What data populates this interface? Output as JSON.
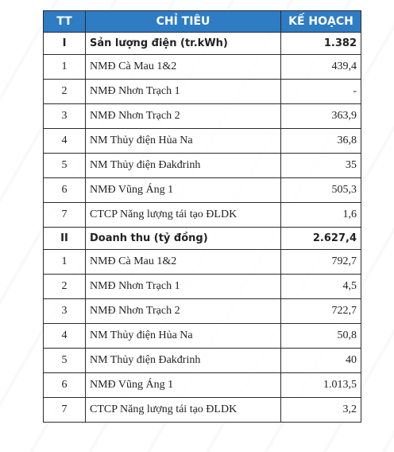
{
  "table": {
    "header": [
      "TT",
      "CHỈ TIÊU",
      "KẾ HOẠCH"
    ],
    "sections": [
      {
        "tt": "I",
        "title": "Sản lượng điện (tr.kWh)",
        "value": "1.382",
        "rows": [
          [
            "1",
            "NMĐ Cà Mau 1&2",
            "439,4"
          ],
          [
            "2",
            "NMĐ Nhơn Trạch 1",
            "-"
          ],
          [
            "3",
            "NMĐ Nhơn Trạch 2",
            "363,9"
          ],
          [
            "4",
            "NM Thủy điện Hủa Na",
            "36,8"
          ],
          [
            "5",
            "NM Thủy điện Đakđrinh",
            "35"
          ],
          [
            "6",
            "NMĐ Vũng Áng 1",
            "505,3"
          ],
          [
            "7",
            "CTCP Năng lượng tái tạo ĐLDK",
            "1,6"
          ]
        ]
      },
      {
        "tt": "II",
        "title": "Doanh thu (tỷ đồng)",
        "value": "2.627,4",
        "rows": [
          [
            "1",
            "NMĐ Cà Mau 1&2",
            "792,7"
          ],
          [
            "2",
            "NMĐ Nhơn Trạch 1",
            "4,5"
          ],
          [
            "3",
            "NMĐ Nhơn Trạch 2",
            "722,7"
          ],
          [
            "4",
            "NM Thủy điện Hủa Na",
            "50,8"
          ],
          [
            "5",
            "NM Thủy điện Đakđrinh",
            "40"
          ],
          [
            "6",
            "NMĐ Vũng Áng 1",
            "1.013,5"
          ],
          [
            "7",
            "CTCP Năng lượng tái tạo ĐLDK",
            "3,2"
          ]
        ]
      }
    ]
  }
}
